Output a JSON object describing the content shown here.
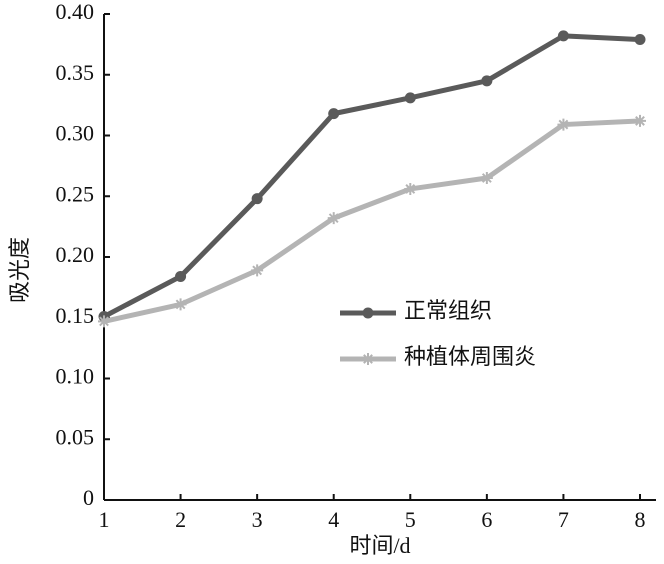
{
  "chart_data": {
    "type": "line",
    "x_label": "时间/d",
    "y_label": "吸光度",
    "x": [
      1,
      2,
      3,
      4,
      5,
      6,
      7,
      8
    ],
    "series": [
      {
        "name": "正常组织",
        "color": "#5a5a5a",
        "marker": "circle",
        "values": [
          0.151,
          0.184,
          0.248,
          0.318,
          0.331,
          0.345,
          0.382,
          0.379
        ]
      },
      {
        "name": "种植体周围炎",
        "color": "#b4b4b4",
        "marker": "star",
        "values": [
          0.147,
          0.161,
          0.189,
          0.232,
          0.256,
          0.265,
          0.309,
          0.312
        ]
      }
    ],
    "xlim": [
      1,
      8
    ],
    "xticks": [
      1,
      2,
      3,
      4,
      5,
      6,
      7,
      8
    ],
    "ylim": [
      0,
      0.4
    ],
    "yticks": [
      0,
      0.05,
      {
        "value": 0.1,
        "label": "0.10"
      },
      0.15,
      {
        "value": 0.2,
        "label": "0.20"
      },
      0.25,
      {
        "value": 0.3,
        "label": "0.30"
      },
      0.35,
      {
        "value": 0.4,
        "label": "0.40"
      }
    ],
    "grid": false,
    "legend": "right"
  }
}
